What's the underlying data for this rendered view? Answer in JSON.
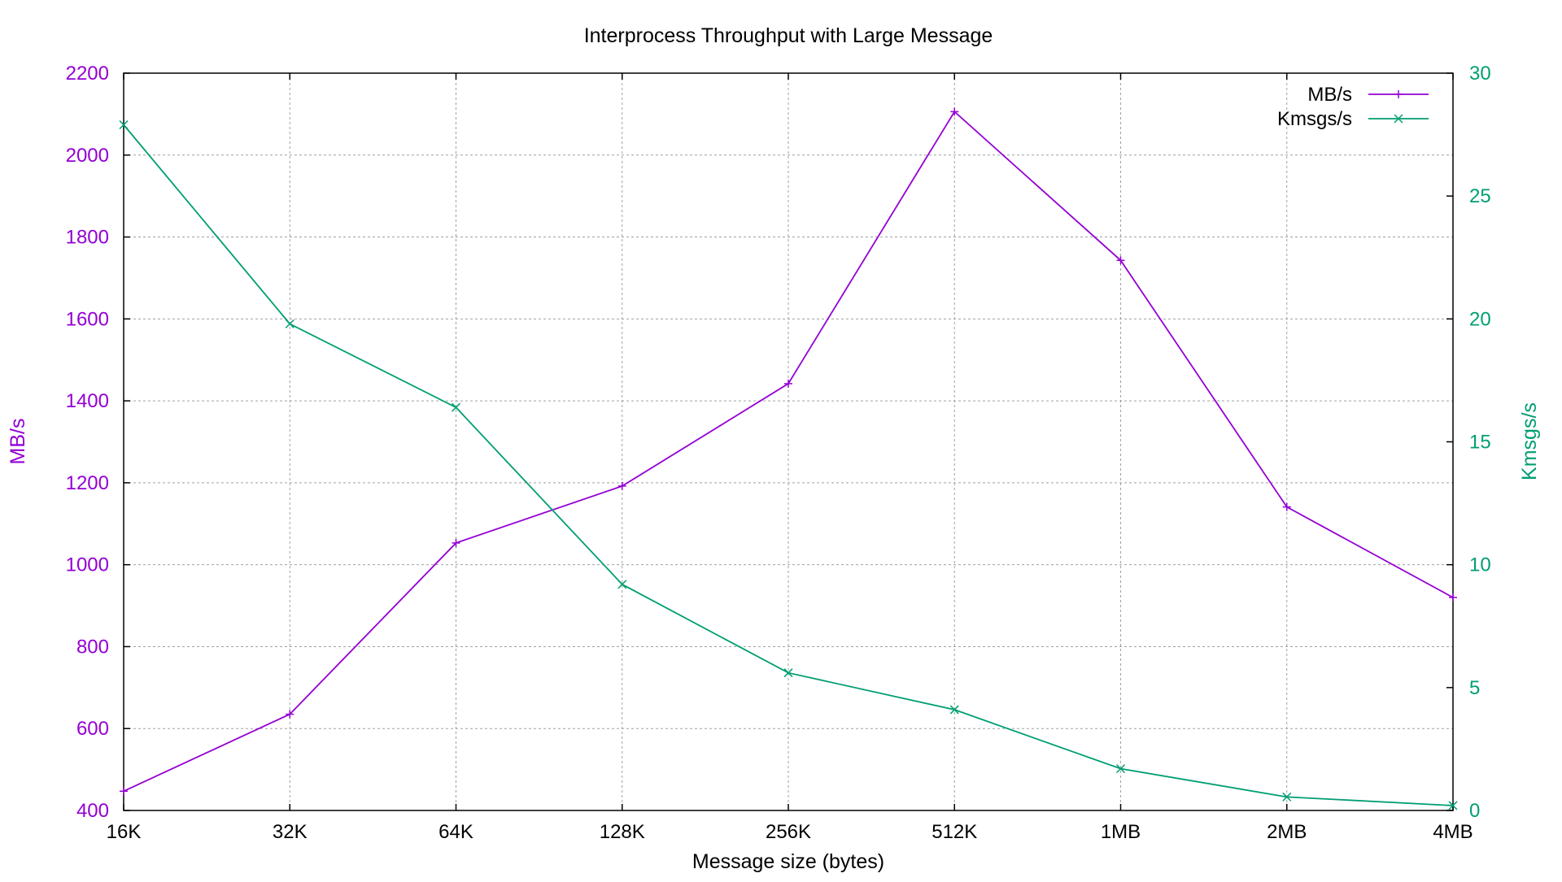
{
  "chart_data": {
    "type": "line",
    "title": "Interprocess Throughput with Large Message",
    "xlabel": "Message size (bytes)",
    "ylabel": "MB/s",
    "y2label": "Kmsgs/s",
    "categories": [
      "16K",
      "32K",
      "64K",
      "128K",
      "256K",
      "512K",
      "1MB",
      "2MB",
      "4MB"
    ],
    "ylim": [
      400,
      2200
    ],
    "y2lim": [
      0,
      30
    ],
    "yticks": [
      400,
      600,
      800,
      1000,
      1200,
      1400,
      1600,
      1800,
      2000,
      2200
    ],
    "y2ticks": [
      0,
      5,
      10,
      15,
      20,
      25,
      30
    ],
    "grid": true,
    "legend_position": "top-right",
    "series": [
      {
        "name": "MB/s",
        "axis": "left",
        "color": "#9400d3",
        "marker": "plus",
        "values": [
          447,
          635,
          1053,
          1192,
          1442,
          2106,
          1743,
          1141,
          920
        ]
      },
      {
        "name": "Kmsgs/s",
        "axis": "right",
        "color": "#009e73",
        "marker": "cross",
        "values": [
          27.9,
          19.8,
          16.4,
          9.2,
          5.6,
          4.1,
          1.7,
          0.55,
          0.2
        ]
      }
    ]
  }
}
